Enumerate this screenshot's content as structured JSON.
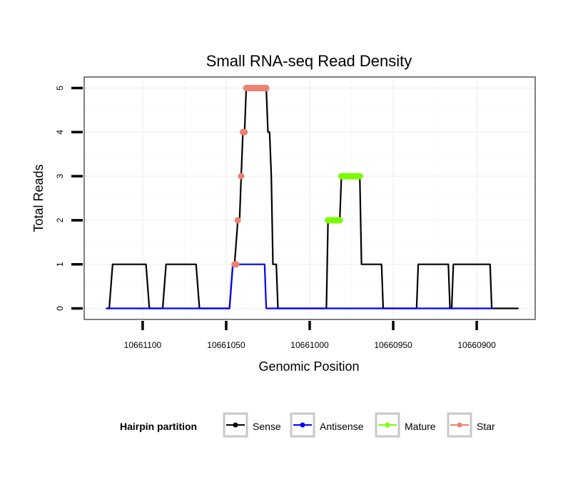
{
  "chart_data": {
    "type": "line",
    "title": "Small RNA-seq Read Density",
    "xlabel": "Genomic Position",
    "ylabel": "Total Reads",
    "xlim": [
      10661135,
      10660865
    ],
    "ylim": [
      -0.25,
      5.25
    ],
    "x_reversed": true,
    "grid": true,
    "xticks": [
      10661100,
      10661050,
      10661000,
      10660950,
      10660900
    ],
    "xtick_labels": [
      "10661100",
      "10661050",
      "10661000",
      "10660950",
      "10660900"
    ],
    "yticks": [
      0,
      1,
      2,
      3,
      4,
      5
    ],
    "ytick_labels": [
      "0",
      "1",
      "2",
      "3",
      "4",
      "5"
    ],
    "legend": {
      "title": "Hairpin partition",
      "position": "bottom",
      "entries": [
        {
          "name": "Sense",
          "color": "#000000"
        },
        {
          "name": "Antisense",
          "color": "#0000ff"
        },
        {
          "name": "Mature",
          "color": "#7cfc00"
        },
        {
          "name": "Star",
          "color": "#f08070"
        }
      ]
    },
    "series": [
      {
        "name": "Sense",
        "color": "#000000",
        "style": "line",
        "points": [
          [
            10661122,
            0
          ],
          [
            10661120,
            0
          ],
          [
            10661118,
            1
          ],
          [
            10661098,
            1
          ],
          [
            10661096,
            0
          ],
          [
            10661088,
            0
          ],
          [
            10661086,
            1
          ],
          [
            10661068,
            1
          ],
          [
            10661066,
            0
          ],
          [
            10661048,
            0
          ],
          [
            10661046,
            1
          ],
          [
            10661045,
            1
          ],
          [
            10661043,
            2
          ],
          [
            10661042,
            2
          ],
          [
            10661041,
            3
          ],
          [
            10661040,
            4
          ],
          [
            10661039,
            4
          ],
          [
            10661038,
            5
          ],
          [
            10661026,
            5
          ],
          [
            10661025,
            4
          ],
          [
            10661024,
            4
          ],
          [
            10661023,
            3
          ],
          [
            10661022,
            1
          ],
          [
            10661020,
            1
          ],
          [
            10661019,
            0
          ],
          [
            10660990,
            0
          ],
          [
            10660989,
            2
          ],
          [
            10660982,
            2
          ],
          [
            10660981,
            3
          ],
          [
            10660970,
            3
          ],
          [
            10660969,
            1
          ],
          [
            10660957,
            1
          ],
          [
            10660956,
            0
          ],
          [
            10660936,
            0
          ],
          [
            10660935,
            1
          ],
          [
            10660917,
            1
          ],
          [
            10660916,
            0
          ],
          [
            10660915,
            0
          ],
          [
            10660914,
            1
          ],
          [
            10660892,
            1
          ],
          [
            10660891,
            0
          ],
          [
            10660875,
            0
          ]
        ]
      },
      {
        "name": "Antisense",
        "color": "#0000ff",
        "style": "line",
        "points": [
          [
            10661122,
            0
          ],
          [
            10661048,
            0
          ],
          [
            10661046,
            1
          ],
          [
            10661027,
            1
          ],
          [
            10661026,
            0
          ],
          [
            10660890,
            0
          ]
        ]
      },
      {
        "name": "Mature",
        "color": "#7cfc00",
        "style": "points",
        "points": [
          [
            10660989,
            2
          ],
          [
            10660988,
            2
          ],
          [
            10660987,
            2
          ],
          [
            10660986,
            2
          ],
          [
            10660985,
            2
          ],
          [
            10660984,
            2
          ],
          [
            10660983,
            2
          ],
          [
            10660982,
            2
          ],
          [
            10660981,
            3
          ],
          [
            10660980,
            3
          ],
          [
            10660979,
            3
          ],
          [
            10660978,
            3
          ],
          [
            10660977,
            3
          ],
          [
            10660976,
            3
          ],
          [
            10660975,
            3
          ],
          [
            10660974,
            3
          ],
          [
            10660973,
            3
          ],
          [
            10660972,
            3
          ],
          [
            10660971,
            3
          ],
          [
            10660970,
            3
          ]
        ]
      },
      {
        "name": "Star",
        "color": "#f08070",
        "style": "points",
        "points": [
          [
            10661045,
            1
          ],
          [
            10661044,
            1
          ],
          [
            10661043,
            2
          ],
          [
            10661041,
            3
          ],
          [
            10661040,
            4
          ],
          [
            10661039,
            4
          ],
          [
            10661038,
            5
          ],
          [
            10661037,
            5
          ],
          [
            10661036,
            5
          ],
          [
            10661035,
            5
          ],
          [
            10661034,
            5
          ],
          [
            10661033,
            5
          ],
          [
            10661032,
            5
          ],
          [
            10661031,
            5
          ],
          [
            10661030,
            5
          ],
          [
            10661029,
            5
          ],
          [
            10661028,
            5
          ],
          [
            10661027,
            5
          ],
          [
            10661026,
            5
          ]
        ]
      }
    ]
  }
}
